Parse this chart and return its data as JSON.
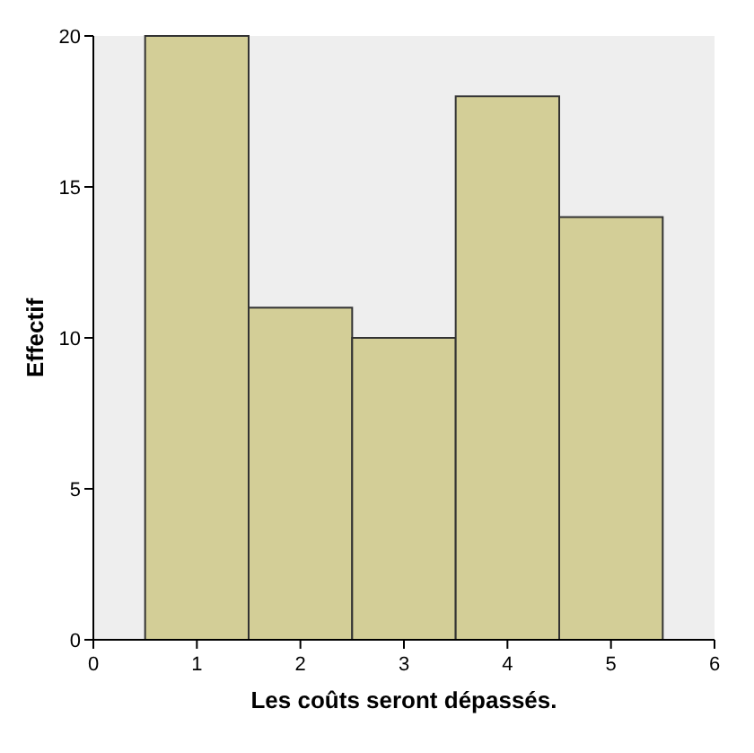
{
  "chart_data": {
    "type": "histogram",
    "xlabel": "Les coûts seront dépassés.",
    "ylabel": "Effectif",
    "bins": [
      0.5,
      1.5,
      2.5,
      3.5,
      4.5,
      5.5
    ],
    "values": [
      20,
      11,
      10,
      18,
      14
    ],
    "color": "#d3ce97",
    "xlim": [
      0,
      6
    ],
    "xticks": [
      0,
      1,
      2,
      3,
      4,
      5,
      6
    ],
    "ylim": [
      0,
      20
    ],
    "yticks": [
      0,
      5,
      10,
      15,
      20
    ],
    "grid": false
  }
}
